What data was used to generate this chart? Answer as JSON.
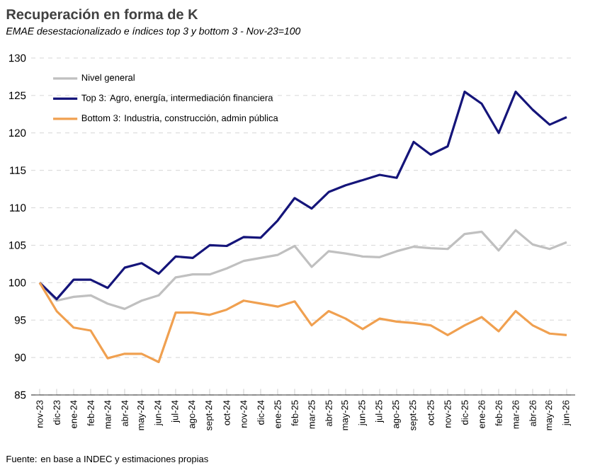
{
  "chart_data": {
    "type": "line",
    "title": "Recuperación en forma de K",
    "subtitle": "EMAE desestacionalizado e índices top 3 y bottom 3 - Nov-23=100",
    "categories": [
      "nov-23",
      "dic-23",
      "ene-24",
      "feb-24",
      "mar-24",
      "abr-24",
      "may-24",
      "jun-24",
      "jul-24",
      "ago-24",
      "sept-24",
      "oct-24",
      "nov-24",
      "dic-24",
      "ene-25",
      "feb-25",
      "mar-25",
      "abr-25",
      "may-25",
      "jun-25",
      "jul-25",
      "ago-25",
      "sept-25",
      "oct-25",
      "nov-25",
      "dic-25",
      "ene-26",
      "feb-26",
      "mar-26",
      "abr-26",
      "may-26",
      "jun-26"
    ],
    "series": [
      {
        "name": "Nivel general",
        "color": "#c0c0c0",
        "values": [
          100,
          97.6,
          98.1,
          98.3,
          97.2,
          96.5,
          97.6,
          98.3,
          100.7,
          101.1,
          101.1,
          101.9,
          102.9,
          103.3,
          103.7,
          104.9,
          102.1,
          104.2,
          103.9,
          103.5,
          103.4,
          104.2,
          104.8,
          104.6,
          104.5,
          106.5,
          106.8,
          104.3,
          107.0,
          105.1,
          104.5,
          105.4
        ]
      },
      {
        "name": "Top 3: Agro, energía, intermediación financiera",
        "color": "#15157a",
        "values": [
          100,
          97.8,
          100.4,
          100.4,
          99.3,
          102.0,
          102.6,
          101.2,
          103.5,
          103.3,
          105.0,
          104.9,
          106.1,
          106.0,
          108.3,
          111.3,
          109.9,
          112.1,
          113.0,
          113.7,
          114.4,
          114.0,
          118.8,
          117.1,
          118.2,
          125.5,
          123.9,
          120.0,
          125.5,
          123.1,
          121.1,
          122.1
        ]
      },
      {
        "name": "Bottom 3: Industria, construcción, admin pública",
        "color": "#f0a050",
        "values": [
          100,
          96.2,
          94.0,
          93.6,
          89.9,
          90.5,
          90.5,
          89.4,
          96.0,
          96.0,
          95.7,
          96.4,
          97.6,
          97.2,
          96.8,
          97.5,
          94.3,
          96.2,
          95.2,
          93.8,
          95.2,
          94.8,
          94.6,
          94.3,
          93.0,
          94.3,
          95.4,
          93.5,
          96.2,
          94.3,
          93.2,
          93.0
        ]
      }
    ],
    "ylim": [
      85,
      130
    ],
    "yticks": [
      85,
      90,
      95,
      100,
      105,
      110,
      115,
      120,
      125,
      130
    ],
    "grid": "y",
    "legend": "top left",
    "line_style": "solid",
    "marker": "none",
    "annotations": [
      "Fuente: en base a INDEC y estimaciones propias"
    ]
  }
}
